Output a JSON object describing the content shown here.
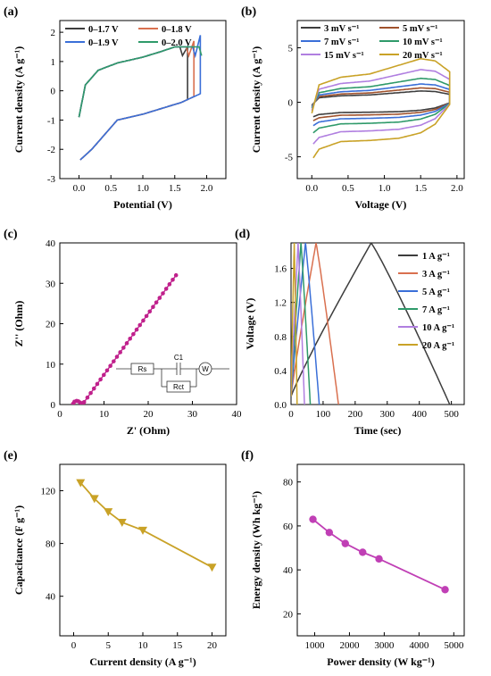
{
  "figure": {
    "panels": [
      {
        "id": "a",
        "label": "(a)",
        "xlabel": "Potential (V)",
        "ylabel": "Current density (A g⁻¹)"
      },
      {
        "id": "b",
        "label": "(b)",
        "xlabel": "Voltage (V)",
        "ylabel": "Current density (A g⁻¹)"
      },
      {
        "id": "c",
        "label": "(c)",
        "xlabel": "Z' (Ohm)",
        "ylabel": "Z'' (Ohm)"
      },
      {
        "id": "d",
        "label": "(d)",
        "xlabel": "Time (sec)",
        "ylabel": "Voltage (V)"
      },
      {
        "id": "e",
        "label": "(e)",
        "xlabel": "Current density (A g⁻¹)",
        "ylabel": "Capacitance (F g⁻¹)"
      },
      {
        "id": "f",
        "label": "(f)",
        "xlabel": "Power density (W kg⁻¹)",
        "ylabel": "Energy density (Wh kg⁻¹)"
      }
    ],
    "circuit_labels": {
      "rs": "Rs",
      "c1": "C1",
      "rct": "Rct",
      "w": "W"
    }
  },
  "chart_data": [
    {
      "id": "a",
      "type": "line",
      "xlabel": "Potential (V)",
      "ylabel": "Current density (A g⁻¹)",
      "xlim": [
        -0.3,
        2.3
      ],
      "ylim": [
        -3,
        2.4
      ],
      "xticks": [
        0.0,
        0.5,
        1.0,
        1.5,
        2.0
      ],
      "yticks": [
        -3,
        -2,
        -1,
        0,
        1,
        2
      ],
      "legend_placement": "top-left",
      "series": [
        {
          "name": "0–1.7 V",
          "color": "#3d3d3d",
          "vmax": 1.7
        },
        {
          "name": "0–1.8 V",
          "color": "#d9704f",
          "vmax": 1.8
        },
        {
          "name": "0–1.9 V",
          "color": "#3a6fd8",
          "vmax": 1.9
        },
        {
          "name": "0–2.0 V",
          "color": "#2f9a6a",
          "vmax": 2.0
        }
      ],
      "upper_branch": {
        "x": [
          0.0,
          0.1,
          0.3,
          0.6,
          1.0,
          1.3,
          1.5
        ],
        "y": [
          -0.9,
          0.2,
          0.7,
          0.95,
          1.15,
          1.35,
          1.5
        ]
      },
      "lower_branch": {
        "x": [
          0.0,
          0.2,
          0.4,
          0.6,
          1.0,
          1.3,
          1.6,
          1.8,
          2.0
        ],
        "y": [
          -2.4,
          -2.0,
          -1.5,
          -1.0,
          -0.8,
          -0.6,
          -0.4,
          -0.2,
          0.0
        ]
      },
      "end_peak": {
        "1.7": 1.5,
        "1.8": 1.7,
        "1.9": 1.9,
        "2.0": 2.1
      }
    },
    {
      "id": "b",
      "type": "line",
      "xlabel": "Voltage (V)",
      "ylabel": "Current density (A g⁻¹)",
      "xlim": [
        -0.2,
        2.1
      ],
      "ylim": [
        -7,
        7.5
      ],
      "xticks": [
        0.0,
        0.5,
        1.0,
        1.5,
        2.0
      ],
      "yticks": [
        -5,
        0,
        5
      ],
      "legend_placement": "top",
      "series": [
        {
          "name": "3 mV s⁻¹",
          "color": "#3d3d3d",
          "scale": 0.26
        },
        {
          "name": "5 mV s⁻¹",
          "color": "#a0522d",
          "scale": 0.33
        },
        {
          "name": "7 mV s⁻¹",
          "color": "#3a6fd8",
          "scale": 0.42
        },
        {
          "name": "10 mV s⁻¹",
          "color": "#2f9a6a",
          "scale": 0.55
        },
        {
          "name": "15 mV s⁻¹",
          "color": "#b07fe0",
          "scale": 0.75
        },
        {
          "name": "20 mV s⁻¹",
          "color": "#c9a227",
          "scale": 1.0
        }
      ],
      "base_upper": {
        "x": [
          0.0,
          0.1,
          0.4,
          0.8,
          1.2,
          1.5,
          1.7,
          1.9
        ],
        "y": [
          -1.0,
          1.6,
          2.3,
          2.6,
          3.4,
          4.0,
          3.8,
          2.8
        ]
      },
      "base_lower": {
        "x": [
          0.0,
          0.1,
          0.4,
          0.8,
          1.2,
          1.5,
          1.7,
          1.9
        ],
        "y": [
          -5.3,
          -4.3,
          -3.6,
          -3.5,
          -3.3,
          -2.8,
          -2.0,
          -0.2
        ]
      }
    },
    {
      "id": "c",
      "type": "scatter",
      "xlabel": "Z' (Ohm)",
      "ylabel": "Z'' (Ohm)",
      "xlim": [
        0,
        40
      ],
      "ylim": [
        0,
        40
      ],
      "xticks": [
        0,
        10,
        20,
        30,
        40
      ],
      "yticks": [
        0,
        10,
        20,
        30,
        40
      ],
      "color": "#c0218c",
      "semicircle": {
        "x": [
          3.0,
          3.3,
          3.8,
          4.2,
          4.6,
          5.0,
          5.3
        ],
        "y": [
          0.2,
          0.7,
          0.9,
          0.8,
          0.5,
          0.2,
          0.4
        ]
      },
      "line": {
        "x": [
          5.5,
          26.3
        ],
        "y": [
          0.6,
          32.0
        ]
      }
    },
    {
      "id": "d",
      "type": "line",
      "xlabel": "Time (sec)",
      "ylabel": "Voltage (V)",
      "xlim": [
        0,
        540
      ],
      "ylim": [
        0,
        1.9
      ],
      "xticks": [
        0,
        100,
        200,
        300,
        400,
        500
      ],
      "yticks": [
        0.0,
        0.4,
        0.8,
        1.2,
        1.6
      ],
      "legend_placement": "right",
      "series": [
        {
          "name": "1 A g⁻¹",
          "color": "#3d3d3d",
          "t_charge": 250,
          "t_total": 495
        },
        {
          "name": "3 A g⁻¹",
          "color": "#d9704f",
          "t_charge": 78,
          "t_total": 148
        },
        {
          "name": "5 A g⁻¹",
          "color": "#3a6fd8",
          "t_charge": 45,
          "t_total": 88
        },
        {
          "name": "7 A g⁻¹",
          "color": "#2f9a6a",
          "t_charge": 31,
          "t_total": 60
        },
        {
          "name": "10 A g⁻¹",
          "color": "#b07fe0",
          "t_charge": 22,
          "t_total": 42
        },
        {
          "name": "20 A g⁻¹",
          "color": "#c9a227",
          "t_charge": 10,
          "t_total": 19
        }
      ],
      "vmax": 1.9
    },
    {
      "id": "e",
      "type": "line",
      "xlabel": "Current density (A g⁻¹)",
      "ylabel": "Capacitance (F g⁻¹)",
      "xlim": [
        -2,
        22
      ],
      "ylim": [
        10,
        140
      ],
      "xticks": [
        0,
        5,
        10,
        15,
        20
      ],
      "yticks": [
        40,
        80,
        120
      ],
      "color": "#c9a227",
      "x": [
        1,
        3,
        5,
        7,
        10,
        20
      ],
      "y": [
        126,
        114,
        104,
        96,
        90,
        62
      ]
    },
    {
      "id": "f",
      "type": "line",
      "xlabel": "Power density (W kg⁻¹)",
      "ylabel": "Energy density (Wh kg⁻¹)",
      "xlim": [
        500,
        5300
      ],
      "ylim": [
        10,
        88
      ],
      "xticks": [
        1000,
        2000,
        3000,
        4000,
        5000
      ],
      "yticks": [
        20,
        40,
        60,
        80
      ],
      "color": "#c03fb5",
      "x": [
        950,
        1420,
        1880,
        2380,
        2850,
        4750
      ],
      "y": [
        63,
        57,
        52,
        48,
        45,
        31
      ]
    }
  ]
}
